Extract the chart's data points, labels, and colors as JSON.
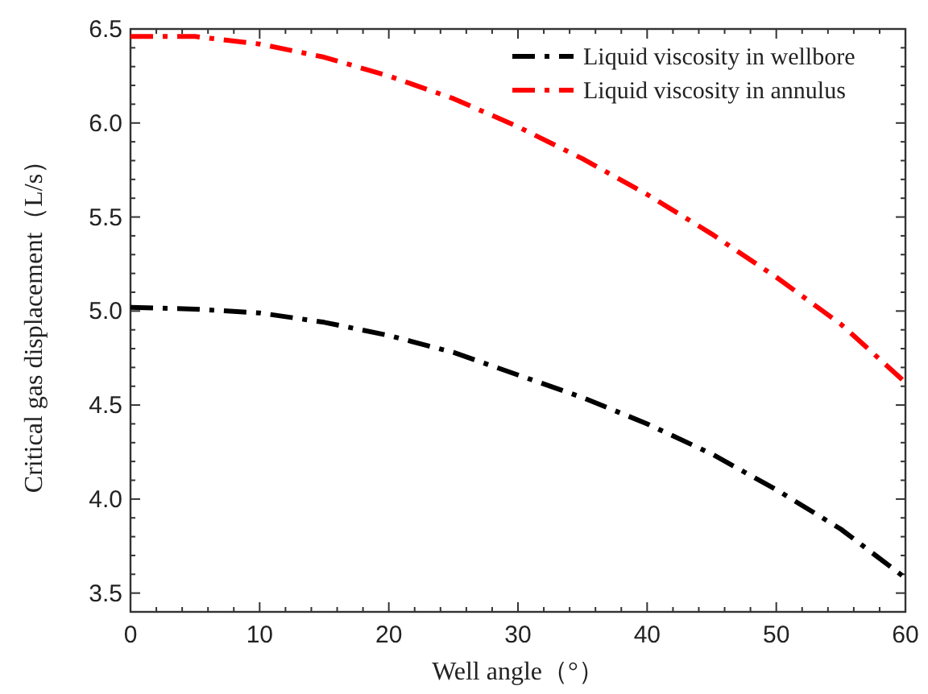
{
  "chart_data": {
    "type": "line",
    "xlabel": "Well angle（°）",
    "ylabel": "Critical gas displacement（L/s）",
    "xlim": [
      0,
      60
    ],
    "ylim": [
      3.4,
      6.5
    ],
    "xticks": [
      0,
      10,
      20,
      30,
      40,
      50,
      60
    ],
    "yticks": [
      {
        "value": 3.5,
        "label": "3.5"
      },
      {
        "value": 4.0,
        "label": "4.0"
      },
      {
        "value": 4.5,
        "label": "4.5"
      },
      {
        "value": 5.0,
        "label": "5.0"
      },
      {
        "value": 5.5,
        "label": "5.5"
      },
      {
        "value": 6.0,
        "label": "6.0"
      },
      {
        "value": 6.5,
        "label": "6.5"
      }
    ],
    "x": [
      0,
      5,
      10,
      15,
      20,
      25,
      30,
      35,
      40,
      45,
      50,
      55,
      60
    ],
    "series": [
      {
        "name": "Liquid viscosity in wellbore",
        "color": "#000000",
        "values": [
          5.02,
          5.01,
          4.99,
          4.94,
          4.87,
          4.78,
          4.66,
          4.54,
          4.4,
          4.24,
          4.05,
          3.84,
          3.58
        ]
      },
      {
        "name": "Liquid viscosity in annulus",
        "color": "#ff0000",
        "values": [
          6.46,
          6.46,
          6.42,
          6.35,
          6.25,
          6.13,
          5.98,
          5.81,
          5.62,
          5.41,
          5.18,
          4.93,
          4.62
        ]
      }
    ],
    "grid": false,
    "legend": "top right",
    "marker": "none",
    "line_style": "dashed"
  }
}
